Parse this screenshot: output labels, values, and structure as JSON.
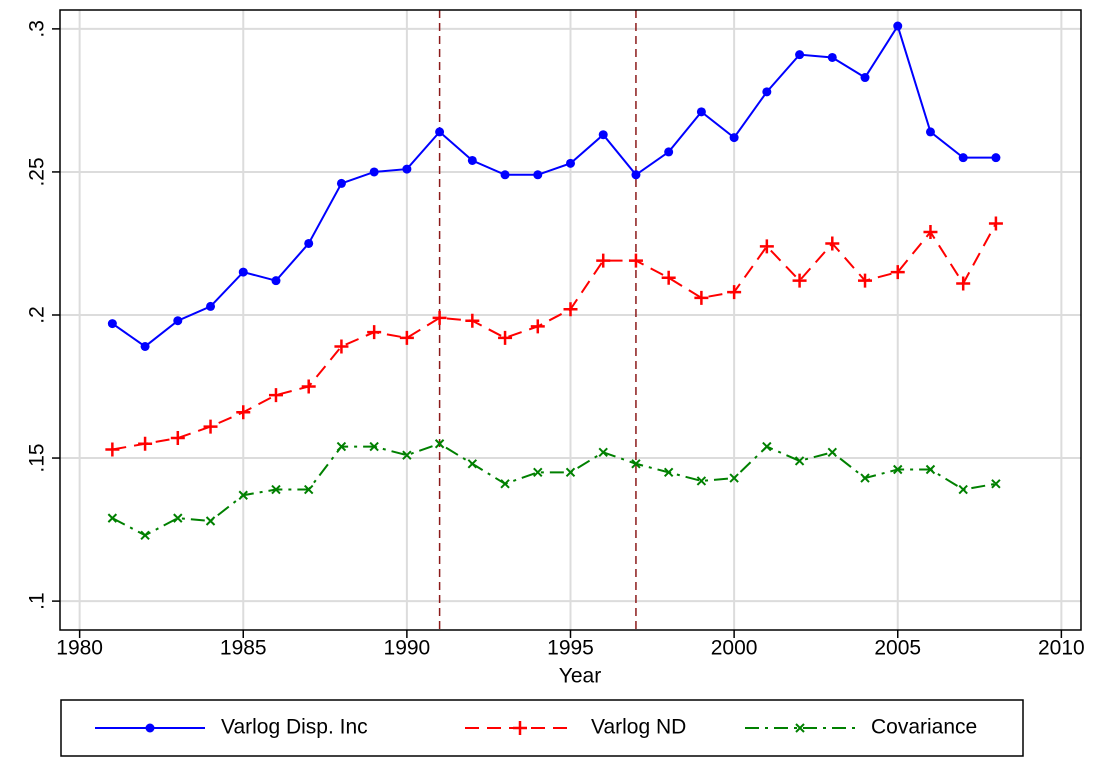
{
  "chart_data": {
    "type": "line",
    "x_label": "Year",
    "x": [
      1981,
      1982,
      1983,
      1984,
      1985,
      1986,
      1987,
      1988,
      1989,
      1990,
      1991,
      1992,
      1993,
      1994,
      1995,
      1996,
      1997,
      1998,
      1999,
      2000,
      2001,
      2002,
      2003,
      2004,
      2005,
      2006,
      2007,
      2008
    ],
    "series": [
      {
        "name": "Varlog Disp. Inc",
        "color": "#0000ff",
        "marker": "circle",
        "line_style": "solid",
        "values": [
          0.197,
          0.189,
          0.198,
          0.203,
          0.215,
          0.212,
          0.225,
          0.246,
          0.25,
          0.251,
          0.264,
          0.254,
          0.249,
          0.249,
          0.253,
          0.263,
          0.249,
          0.257,
          0.271,
          0.262,
          0.278,
          0.291,
          0.29,
          0.283,
          0.301,
          0.264,
          0.255,
          0.255
        ]
      },
      {
        "name": "Varlog ND",
        "color": "#ff0000",
        "marker": "plus",
        "line_style": "dash",
        "values": [
          0.153,
          0.155,
          0.157,
          0.161,
          0.166,
          0.172,
          0.175,
          0.189,
          0.194,
          0.192,
          0.199,
          0.198,
          0.192,
          0.196,
          0.202,
          0.219,
          0.219,
          0.213,
          0.206,
          0.208,
          0.224,
          0.212,
          0.225,
          0.212,
          0.215,
          0.229,
          0.211,
          0.232
        ]
      },
      {
        "name": "Covariance",
        "color": "#008000",
        "marker": "x",
        "line_style": "dashdot",
        "values": [
          0.129,
          0.123,
          0.129,
          0.128,
          0.137,
          0.139,
          0.139,
          0.154,
          0.154,
          0.151,
          0.155,
          0.148,
          0.141,
          0.145,
          0.145,
          0.152,
          0.148,
          0.145,
          0.142,
          0.143,
          0.154,
          0.149,
          0.152,
          0.143,
          0.146,
          0.146,
          0.139,
          0.141
        ]
      }
    ],
    "vlines": [
      1991,
      1997
    ],
    "vline_color": "#8b1a1a",
    "xlim": [
      1979.4,
      2010.6
    ],
    "xticks": [
      1980,
      1985,
      1990,
      1995,
      2000,
      2005,
      2010
    ],
    "ylim": [
      0.0899,
      0.3066
    ],
    "yticks": [
      {
        "value": 0.1,
        "label": ".1"
      },
      {
        "value": 0.15,
        "label": ".15"
      },
      {
        "value": 0.2,
        "label": ".2"
      },
      {
        "value": 0.25,
        "label": ".25"
      },
      {
        "value": 0.3,
        "label": ".3"
      }
    ],
    "grid": true,
    "legend": "bottom"
  }
}
